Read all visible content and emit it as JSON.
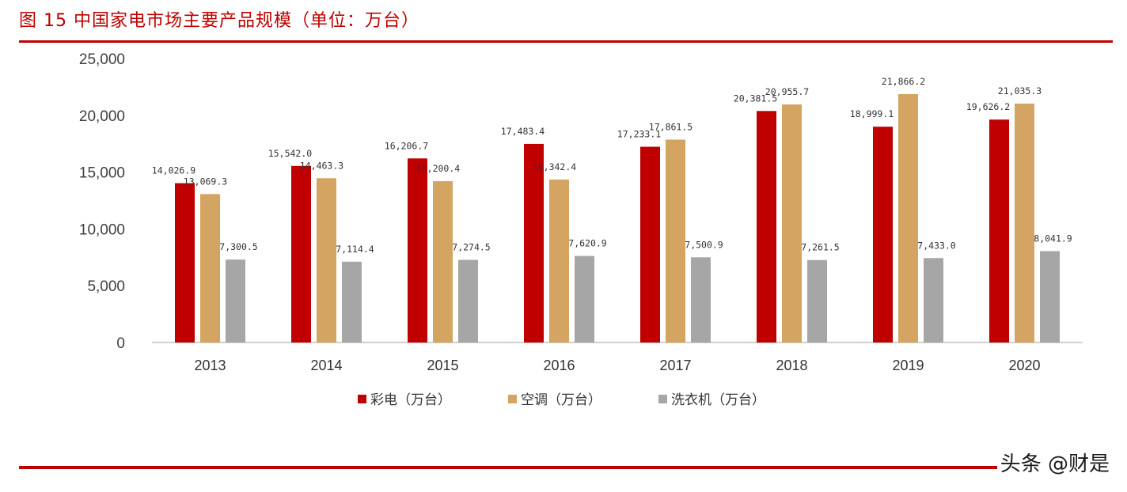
{
  "header": {
    "title": "图 15 中国家电市场主要产品规模（单位：万台）"
  },
  "watermark": "头条 @财是",
  "colors": {
    "accent": "#c00000",
    "series": [
      "#c00000",
      "#d4a462",
      "#a6a6a6"
    ]
  },
  "chart_data": {
    "type": "bar",
    "categories": [
      "2013",
      "2014",
      "2015",
      "2016",
      "2017",
      "2018",
      "2019",
      "2020"
    ],
    "series": [
      {
        "name": "彩电（万台）",
        "values": [
          14026.9,
          15542.0,
          16206.7,
          17483.4,
          17233.1,
          20381.5,
          18999.1,
          19626.2
        ],
        "labels": [
          "14,026.9",
          "15,542.0",
          "16,206.7",
          "17,483.4",
          "17,233.1",
          "20,381.5",
          "18,999.1",
          "19,626.2"
        ]
      },
      {
        "name": "空调（万台）",
        "values": [
          13069.3,
          14463.3,
          14200.4,
          14342.4,
          17861.5,
          20955.7,
          21866.2,
          21035.3
        ],
        "labels": [
          "13,069.3",
          "14,463.3",
          "14,200.4",
          "14,342.4",
          "17,861.5",
          "20,955.7",
          "21,866.2",
          "21,035.3"
        ]
      },
      {
        "name": "洗衣机（万台）",
        "values": [
          7300.5,
          7114.4,
          7274.5,
          7620.9,
          7500.9,
          7261.5,
          7433.0,
          8041.9
        ],
        "labels": [
          "7,300.5",
          "7,114.4",
          "7,274.5",
          "7,620.9",
          "7,500.9",
          "7,261.5",
          "7,433.0",
          "8,041.9"
        ]
      }
    ],
    "yticks": [
      "25,000",
      "20,000",
      "15,000",
      "10,000",
      "5,000",
      "0"
    ],
    "ylim": [
      0,
      25000
    ],
    "legend": "bottom",
    "grid": false
  }
}
